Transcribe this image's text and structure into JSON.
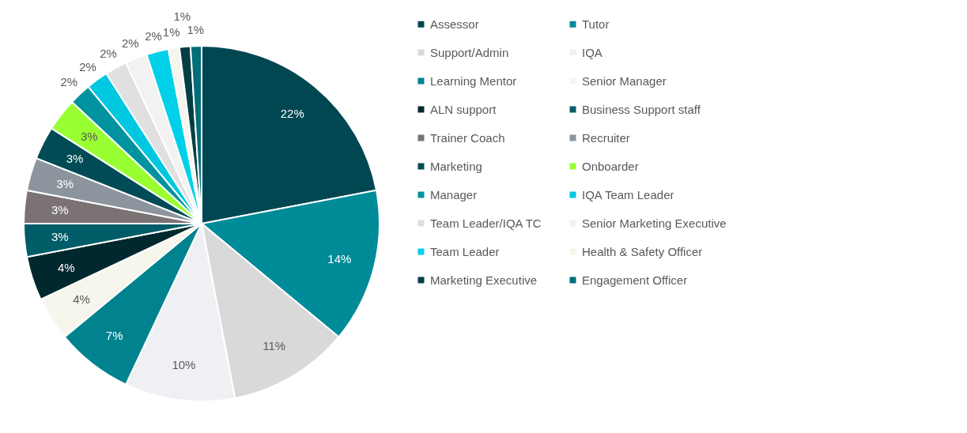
{
  "chart_data": {
    "type": "pie",
    "categories": [
      "Assessor",
      "Tutor",
      "Support/Admin",
      "IQA",
      "Learning Mentor",
      "Senior Manager",
      "ALN support",
      "Business Support staff",
      "Trainer Coach",
      "Recruiter",
      "Marketing",
      "Onboarder",
      "Manager",
      "IQA Team Leader",
      "Team Leader/IQA TC",
      "Senior Marketing Executive",
      "Team Leader",
      "Health & Safety Officer",
      "Marketing Executive",
      "Engagement Officer"
    ],
    "values": [
      22,
      14,
      11,
      10,
      7,
      4,
      4,
      3,
      3,
      3,
      3,
      3,
      2,
      2,
      2,
      2,
      2,
      1,
      1,
      1
    ],
    "colors": [
      "#004752",
      "#008b99",
      "#d9d9d9",
      "#eef0f3",
      "#00838f",
      "#f6f6ec",
      "#00282e",
      "#005d68",
      "#7b7373",
      "#8c959d",
      "#004b55",
      "#99ff33",
      "#00939f",
      "#00c8e0",
      "#e0e0e0",
      "#f2f2f2",
      "#00d0e8",
      "#f5f5ee",
      "#013f45",
      "#006e78"
    ],
    "value_labels": [
      "22%",
      "14%",
      "11%",
      "10%",
      "7%",
      "4%",
      "4%",
      "3%",
      "3%",
      "3%",
      "3%",
      "3%",
      "2%",
      "2%",
      "2%",
      "2%",
      "2%",
      "1%",
      "1%",
      "1%"
    ],
    "legend": "right"
  }
}
